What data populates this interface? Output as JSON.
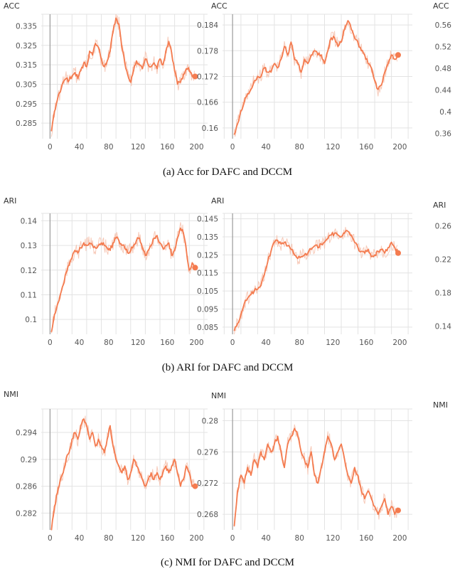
{
  "chart_data": [
    {
      "type": "line",
      "panel": "a1",
      "ylabel": "ACC",
      "xlim": [
        -12,
        215
      ],
      "ylim": [
        0.277,
        0.341
      ],
      "xticks": [
        0,
        40,
        80,
        120,
        160,
        200
      ],
      "yticks": [
        0.285,
        0.295,
        0.305,
        0.315,
        0.325,
        0.335
      ],
      "ytick_labels": [
        "0.285",
        "0.295",
        "0.305",
        "0.315",
        "0.325",
        "0.335"
      ],
      "series": [
        {
          "x": [
            2,
            6,
            10,
            14,
            18,
            22,
            26,
            30,
            34,
            38,
            42,
            46,
            50,
            54,
            58,
            62,
            66,
            70,
            74,
            78,
            82,
            86,
            90,
            94,
            98,
            102,
            106,
            110,
            114,
            118,
            122,
            126,
            130,
            134,
            138,
            142,
            146,
            150,
            154,
            158,
            162,
            166,
            170,
            174,
            178,
            182,
            186,
            190,
            194,
            198
          ],
          "values": [
            0.281,
            0.291,
            0.297,
            0.301,
            0.306,
            0.308,
            0.307,
            0.309,
            0.311,
            0.308,
            0.312,
            0.316,
            0.314,
            0.322,
            0.32,
            0.326,
            0.324,
            0.318,
            0.314,
            0.317,
            0.322,
            0.332,
            0.339,
            0.336,
            0.324,
            0.316,
            0.31,
            0.306,
            0.312,
            0.317,
            0.315,
            0.313,
            0.318,
            0.315,
            0.314,
            0.316,
            0.313,
            0.318,
            0.315,
            0.322,
            0.327,
            0.321,
            0.312,
            0.305,
            0.306,
            0.31,
            0.313,
            0.312,
            0.309,
            0.309
          ]
        }
      ]
    },
    {
      "type": "line",
      "panel": "a2",
      "ylabel": "ACC",
      "xlim": [
        -12,
        215
      ],
      "ylim": [
        0.1575,
        0.1865
      ],
      "xticks": [
        0,
        40,
        80,
        120,
        160,
        200
      ],
      "yticks": [
        0.16,
        0.166,
        0.172,
        0.178,
        0.184
      ],
      "ytick_labels": [
        "0.16",
        "0.166",
        "0.172",
        "0.178",
        "0.184"
      ],
      "series": [
        {
          "x": [
            2,
            6,
            10,
            14,
            18,
            22,
            26,
            30,
            34,
            38,
            42,
            46,
            50,
            54,
            58,
            62,
            66,
            70,
            74,
            78,
            82,
            86,
            90,
            94,
            98,
            102,
            106,
            110,
            114,
            118,
            122,
            126,
            130,
            134,
            138,
            142,
            146,
            150,
            154,
            158,
            162,
            166,
            170,
            174,
            178,
            182,
            186,
            190,
            194,
            198
          ],
          "values": [
            0.1585,
            0.161,
            0.164,
            0.166,
            0.168,
            0.169,
            0.171,
            0.172,
            0.172,
            0.174,
            0.173,
            0.173,
            0.175,
            0.174,
            0.176,
            0.179,
            0.177,
            0.18,
            0.176,
            0.175,
            0.173,
            0.176,
            0.175,
            0.177,
            0.178,
            0.177,
            0.177,
            0.175,
            0.178,
            0.181,
            0.181,
            0.179,
            0.18,
            0.183,
            0.185,
            0.183,
            0.181,
            0.18,
            0.178,
            0.177,
            0.175,
            0.174,
            0.171,
            0.169,
            0.17,
            0.173,
            0.175,
            0.177,
            0.176,
            0.177
          ]
        }
      ]
    },
    {
      "type": "line",
      "panel": "a3",
      "ylabel": "ACC",
      "xlim": [
        -12,
        215
      ],
      "ylim": [
        0.35,
        0.58
      ],
      "yticks": [
        0.36,
        0.4,
        0.44,
        0.48,
        0.52,
        0.56
      ],
      "ytick_labels": [
        "0.36",
        "0.4",
        "0.44",
        "0.48",
        "0.52",
        "0.56"
      ],
      "series": []
    },
    {
      "type": "line",
      "panel": "b1",
      "ylabel": "ARI",
      "xlim": [
        -12,
        215
      ],
      "ylim": [
        0.094,
        0.143
      ],
      "xticks": [
        0,
        40,
        80,
        120,
        160,
        200
      ],
      "yticks": [
        0.1,
        0.11,
        0.12,
        0.13,
        0.14
      ],
      "ytick_labels": [
        "0.1",
        "0.11",
        "0.12",
        "0.13",
        "0.14"
      ],
      "series": [
        {
          "x": [
            2,
            6,
            10,
            14,
            18,
            22,
            26,
            30,
            34,
            38,
            42,
            46,
            50,
            54,
            58,
            62,
            66,
            70,
            74,
            78,
            82,
            86,
            90,
            94,
            98,
            102,
            106,
            110,
            114,
            118,
            122,
            126,
            130,
            134,
            138,
            142,
            146,
            150,
            154,
            158,
            162,
            166,
            170,
            174,
            178,
            182,
            186,
            190,
            194,
            198
          ],
          "values": [
            0.095,
            0.102,
            0.106,
            0.11,
            0.114,
            0.119,
            0.122,
            0.125,
            0.128,
            0.127,
            0.129,
            0.131,
            0.13,
            0.131,
            0.13,
            0.129,
            0.13,
            0.131,
            0.13,
            0.129,
            0.128,
            0.131,
            0.133,
            0.132,
            0.13,
            0.129,
            0.127,
            0.128,
            0.13,
            0.132,
            0.133,
            0.129,
            0.126,
            0.128,
            0.13,
            0.133,
            0.134,
            0.131,
            0.129,
            0.13,
            0.131,
            0.126,
            0.128,
            0.133,
            0.137,
            0.135,
            0.128,
            0.12,
            0.123,
            0.121
          ]
        }
      ]
    },
    {
      "type": "line",
      "panel": "b2",
      "ylabel": "ARI",
      "xlim": [
        -12,
        215
      ],
      "ylim": [
        0.081,
        0.148
      ],
      "xticks": [
        0,
        40,
        80,
        120,
        160,
        200
      ],
      "yticks": [
        0.085,
        0.095,
        0.105,
        0.115,
        0.125,
        0.135,
        0.145
      ],
      "ytick_labels": [
        "0.085",
        "0.095",
        "0.105",
        "0.115",
        "0.125",
        "0.135",
        "0.145"
      ],
      "series": [
        {
          "x": [
            2,
            6,
            10,
            14,
            18,
            22,
            26,
            30,
            34,
            38,
            42,
            46,
            50,
            54,
            58,
            62,
            66,
            70,
            74,
            78,
            82,
            86,
            90,
            94,
            98,
            102,
            106,
            110,
            114,
            118,
            122,
            126,
            130,
            134,
            138,
            142,
            146,
            150,
            154,
            158,
            162,
            166,
            170,
            174,
            178,
            182,
            186,
            190,
            194,
            198
          ],
          "values": [
            0.083,
            0.087,
            0.092,
            0.098,
            0.101,
            0.103,
            0.105,
            0.106,
            0.108,
            0.114,
            0.121,
            0.127,
            0.132,
            0.133,
            0.131,
            0.132,
            0.13,
            0.128,
            0.125,
            0.123,
            0.124,
            0.125,
            0.126,
            0.128,
            0.13,
            0.129,
            0.131,
            0.132,
            0.134,
            0.136,
            0.137,
            0.136,
            0.135,
            0.137,
            0.138,
            0.136,
            0.132,
            0.129,
            0.127,
            0.126,
            0.128,
            0.124,
            0.125,
            0.127,
            0.128,
            0.126,
            0.129,
            0.132,
            0.129,
            0.126
          ]
        }
      ]
    },
    {
      "type": "line",
      "panel": "b3",
      "ylabel": "ARI",
      "xlim": [
        -12,
        215
      ],
      "ylim": [
        0.13,
        0.275
      ],
      "yticks": [
        0.14,
        0.18,
        0.22,
        0.26
      ],
      "ytick_labels": [
        "0.14",
        "0.18",
        "0.22",
        "0.26"
      ],
      "series": []
    },
    {
      "type": "line",
      "panel": "c1",
      "ylabel": "NMI",
      "xlim": [
        -12,
        215
      ],
      "ylim": [
        0.2795,
        0.2975
      ],
      "xticks": [
        0,
        40,
        80,
        120,
        160,
        200
      ],
      "yticks": [
        0.282,
        0.286,
        0.29,
        0.294
      ],
      "ytick_labels": [
        "0.282",
        "0.286",
        "0.29",
        "0.294"
      ],
      "series": [
        {
          "x": [
            2,
            6,
            10,
            14,
            18,
            22,
            26,
            30,
            34,
            38,
            42,
            46,
            50,
            54,
            58,
            62,
            66,
            70,
            74,
            78,
            82,
            86,
            90,
            94,
            98,
            102,
            106,
            110,
            114,
            118,
            122,
            126,
            130,
            134,
            138,
            142,
            146,
            150,
            154,
            158,
            162,
            166,
            170,
            174,
            178,
            182,
            186,
            190,
            194,
            198
          ],
          "values": [
            0.2795,
            0.283,
            0.285,
            0.287,
            0.288,
            0.29,
            0.291,
            0.293,
            0.294,
            0.293,
            0.295,
            0.296,
            0.295,
            0.293,
            0.294,
            0.292,
            0.293,
            0.292,
            0.291,
            0.293,
            0.295,
            0.292,
            0.29,
            0.289,
            0.288,
            0.289,
            0.287,
            0.288,
            0.29,
            0.289,
            0.288,
            0.287,
            0.286,
            0.287,
            0.288,
            0.287,
            0.288,
            0.287,
            0.288,
            0.289,
            0.288,
            0.289,
            0.29,
            0.288,
            0.286,
            0.287,
            0.289,
            0.288,
            0.286,
            0.286
          ]
        }
      ]
    },
    {
      "type": "line",
      "panel": "c2",
      "ylabel": "NMI",
      "xlim": [
        -12,
        215
      ],
      "ylim": [
        0.266,
        0.2815
      ],
      "xticks": [
        0,
        40,
        80,
        120,
        160,
        200
      ],
      "yticks": [
        0.268,
        0.272,
        0.276,
        0.28
      ],
      "ytick_labels": [
        "0.268",
        "0.272",
        "0.276",
        "0.28"
      ],
      "series": [
        {
          "x": [
            2,
            6,
            10,
            14,
            18,
            22,
            26,
            30,
            34,
            38,
            42,
            46,
            50,
            54,
            58,
            62,
            66,
            70,
            74,
            78,
            82,
            86,
            90,
            94,
            98,
            102,
            106,
            110,
            114,
            118,
            122,
            126,
            130,
            134,
            138,
            142,
            146,
            150,
            154,
            158,
            162,
            166,
            170,
            174,
            178,
            182,
            186,
            190,
            194,
            198
          ],
          "values": [
            0.2665,
            0.271,
            0.273,
            0.272,
            0.274,
            0.273,
            0.275,
            0.274,
            0.276,
            0.275,
            0.277,
            0.276,
            0.277,
            0.278,
            0.276,
            0.274,
            0.277,
            0.278,
            0.279,
            0.278,
            0.276,
            0.275,
            0.274,
            0.276,
            0.273,
            0.272,
            0.274,
            0.276,
            0.278,
            0.277,
            0.275,
            0.276,
            0.277,
            0.275,
            0.273,
            0.272,
            0.274,
            0.273,
            0.271,
            0.27,
            0.271,
            0.27,
            0.269,
            0.268,
            0.269,
            0.27,
            0.268,
            0.269,
            0.268,
            0.2685
          ]
        }
      ]
    }
  ],
  "captions": {
    "a": "(a)  Acc for DAFC and DCCM",
    "b": "(b)  ARI for DAFC and DCCM",
    "c": "(c)  NMI for DAFC and DCCM"
  }
}
